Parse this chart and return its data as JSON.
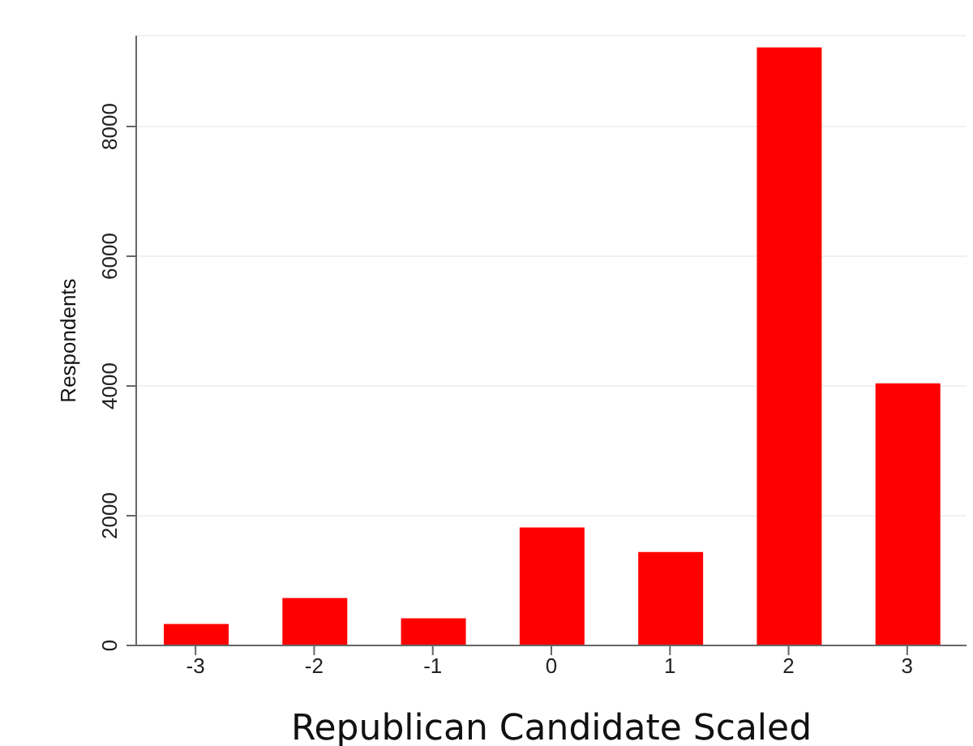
{
  "chart_data": {
    "type": "bar",
    "xlabel": "Republican Candidate Scaled",
    "ylabel": "Respondents",
    "categories": [
      "-3",
      "-2",
      "-1",
      "0",
      "1",
      "2",
      "3"
    ],
    "values": [
      330,
      730,
      420,
      1820,
      1440,
      9220,
      4040
    ],
    "color": "#ff0000",
    "ylim": [
      0,
      9400
    ],
    "yticks": [
      0,
      2000,
      4000,
      6000,
      8000
    ],
    "grid": "y"
  }
}
